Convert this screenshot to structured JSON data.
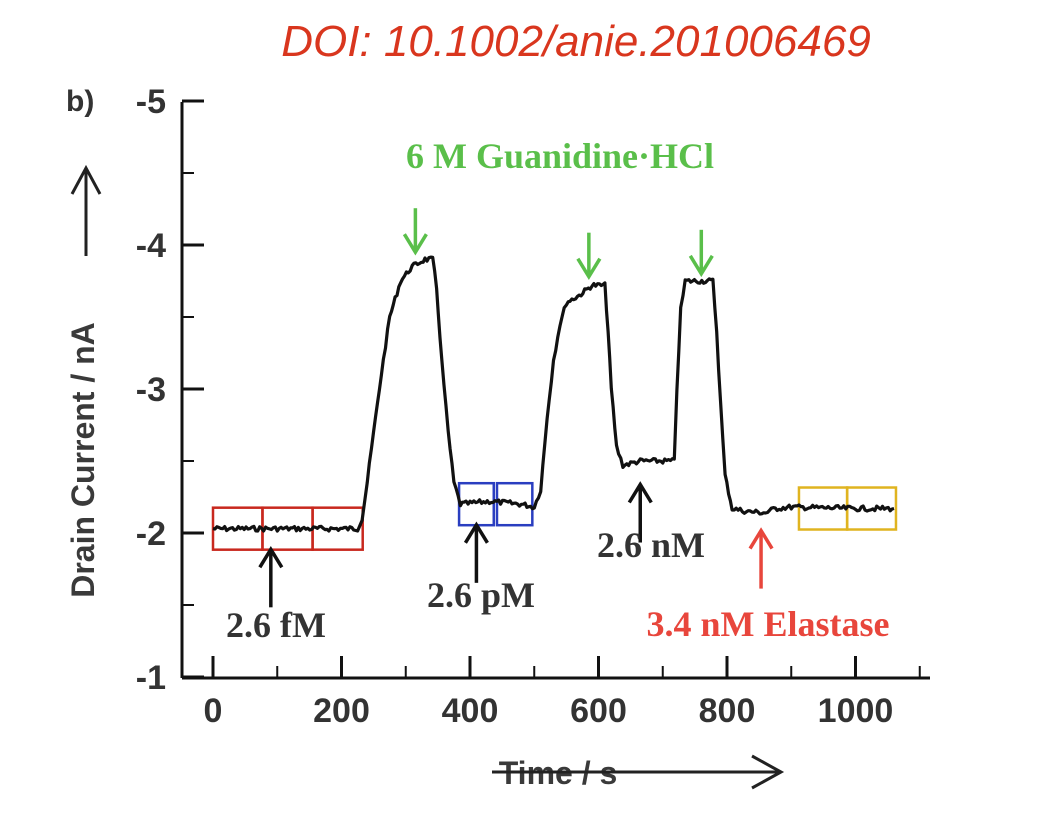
{
  "doi": "DOI: 10.1002/anie.201006469",
  "chart_data": {
    "type": "line",
    "panel_label": "b)",
    "xlabel": "Time / s",
    "ylabel": "Drain Current / nA",
    "xlim": [
      -20,
      1100
    ],
    "ylim": [
      -1,
      -5
    ],
    "xticks": [
      "0",
      "200",
      "400",
      "600",
      "800",
      "1000"
    ],
    "yticks": [
      "-5",
      "-4",
      "-3",
      "-2",
      "-1"
    ],
    "series": [
      {
        "color": "#111111",
        "points": [
          [
            0,
            -2.03
          ],
          [
            100,
            -2.03
          ],
          [
            225,
            -2.03
          ],
          [
            232,
            -2.1
          ],
          [
            240,
            -2.35
          ],
          [
            250,
            -2.7
          ],
          [
            262,
            -3.1
          ],
          [
            275,
            -3.5
          ],
          [
            292,
            -3.75
          ],
          [
            310,
            -3.85
          ],
          [
            330,
            -3.9
          ],
          [
            342,
            -3.9
          ],
          [
            348,
            -3.7
          ],
          [
            356,
            -3.2
          ],
          [
            366,
            -2.7
          ],
          [
            375,
            -2.35
          ],
          [
            385,
            -2.2
          ],
          [
            430,
            -2.22
          ],
          [
            480,
            -2.2
          ],
          [
            500,
            -2.18
          ],
          [
            510,
            -2.3
          ],
          [
            520,
            -2.8
          ],
          [
            530,
            -3.2
          ],
          [
            540,
            -3.45
          ],
          [
            550,
            -3.6
          ],
          [
            570,
            -3.65
          ],
          [
            590,
            -3.72
          ],
          [
            610,
            -3.72
          ],
          [
            615,
            -3.4
          ],
          [
            620,
            -3.0
          ],
          [
            628,
            -2.6
          ],
          [
            638,
            -2.47
          ],
          [
            665,
            -2.5
          ],
          [
            700,
            -2.5
          ],
          [
            718,
            -2.5
          ],
          [
            722,
            -3.0
          ],
          [
            728,
            -3.55
          ],
          [
            735,
            -3.75
          ],
          [
            755,
            -3.75
          ],
          [
            778,
            -3.75
          ],
          [
            784,
            -3.4
          ],
          [
            790,
            -2.9
          ],
          [
            797,
            -2.4
          ],
          [
            808,
            -2.17
          ],
          [
            830,
            -2.15
          ],
          [
            860,
            -2.14
          ],
          [
            875,
            -2.17
          ],
          [
            900,
            -2.18
          ],
          [
            1000,
            -2.17
          ],
          [
            1060,
            -2.17
          ]
        ]
      }
    ],
    "annotations": [
      {
        "text": "6 M Guanidine·HCl",
        "color": "#5abf4a"
      },
      {
        "text": "2.6 fM",
        "color": "#333333"
      },
      {
        "text": "2.6 pM",
        "color": "#333333"
      },
      {
        "text": "2.6 nM",
        "color": "#333333"
      },
      {
        "text": "3.4 nM Elastase",
        "color": "#e8463c"
      }
    ],
    "arrows": [
      {
        "x": 315,
        "y": -3.95,
        "direction": "down",
        "color": "#5abf4a"
      },
      {
        "x": 585,
        "y": -3.78,
        "direction": "down",
        "color": "#5abf4a"
      },
      {
        "x": 760,
        "y": -3.8,
        "direction": "down",
        "color": "#5abf4a"
      },
      {
        "x": 90,
        "y": -1.97,
        "direction": "up",
        "color": "#111111"
      },
      {
        "x": 410,
        "y": -2.14,
        "direction": "up",
        "color": "#111111"
      },
      {
        "x": 665,
        "y": -2.42,
        "direction": "up",
        "color": "#111111"
      },
      {
        "x": 853,
        "y": -2.1,
        "direction": "up",
        "color": "#e8463c"
      }
    ],
    "boxes": [
      {
        "x0": 0,
        "x1": 77,
        "y": -2.03,
        "color": "#c8281e"
      },
      {
        "x0": 77,
        "x1": 155,
        "y": -2.03,
        "color": "#c8281e"
      },
      {
        "x0": 155,
        "x1": 233,
        "y": -2.03,
        "color": "#c8281e"
      },
      {
        "x0": 383,
        "x1": 437,
        "y": -2.2,
        "color": "#2a3ec0"
      },
      {
        "x0": 442,
        "x1": 497,
        "y": -2.2,
        "color": "#2a3ec0"
      },
      {
        "x0": 912,
        "x1": 987,
        "y": -2.17,
        "color": "#e0b420"
      },
      {
        "x0": 987,
        "x1": 1063,
        "y": -2.17,
        "color": "#e0b420"
      }
    ]
  }
}
